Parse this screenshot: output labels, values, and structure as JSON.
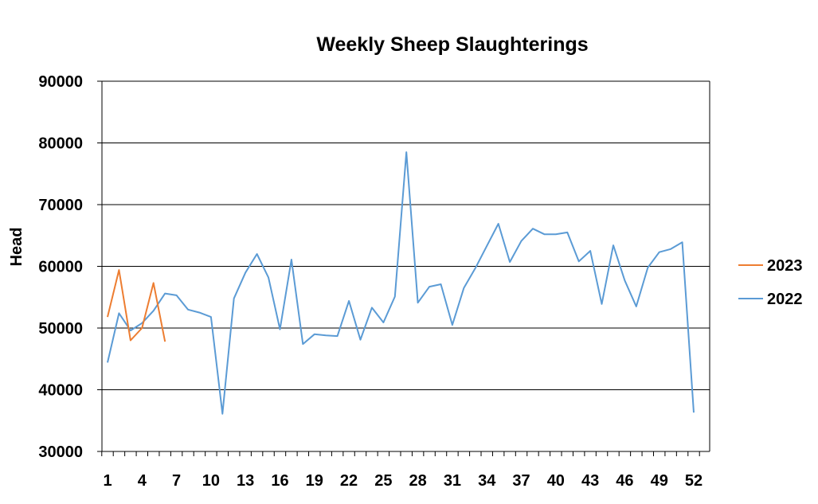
{
  "chart_data": {
    "type": "line",
    "title": "Weekly Sheep Slaughterings",
    "xlabel": "",
    "ylabel": "Head",
    "ylim": [
      30000,
      90000
    ],
    "y_ticks": [
      30000,
      40000,
      50000,
      60000,
      70000,
      80000,
      90000
    ],
    "xlim": [
      1,
      52
    ],
    "x_tick_labels": [
      1,
      4,
      7,
      10,
      13,
      16,
      19,
      22,
      25,
      28,
      31,
      34,
      37,
      40,
      43,
      46,
      49,
      52
    ],
    "grid": "horizontal",
    "legend_position": "right",
    "series": [
      {
        "name": "2023",
        "color": "#ED7D31",
        "x": [
          1,
          2,
          3,
          4,
          5,
          6
        ],
        "values": [
          51800,
          59400,
          48000,
          50000,
          57300,
          47800
        ]
      },
      {
        "name": "2022",
        "color": "#5B9BD5",
        "x": [
          1,
          2,
          3,
          4,
          5,
          6,
          7,
          8,
          9,
          10,
          11,
          12,
          13,
          14,
          15,
          16,
          17,
          18,
          19,
          20,
          21,
          22,
          23,
          24,
          25,
          26,
          27,
          28,
          29,
          30,
          31,
          32,
          33,
          34,
          35,
          36,
          37,
          38,
          39,
          40,
          41,
          42,
          43,
          44,
          45,
          46,
          47,
          48,
          49,
          50,
          51,
          52
        ],
        "values": [
          44400,
          52400,
          49600,
          50800,
          52800,
          55600,
          55300,
          53000,
          52500,
          51800,
          36100,
          54800,
          59000,
          62000,
          58200,
          49800,
          61100,
          47400,
          49000,
          48800,
          48700,
          54400,
          48100,
          53300,
          50900,
          55100,
          78500,
          54100,
          56700,
          57100,
          50500,
          56500,
          59700,
          63300,
          66900,
          60700,
          64100,
          66100,
          65200,
          65200,
          65500,
          60800,
          62500,
          53900,
          63400,
          57700,
          53500,
          59800,
          62300,
          62800,
          63900,
          36300
        ]
      }
    ]
  }
}
